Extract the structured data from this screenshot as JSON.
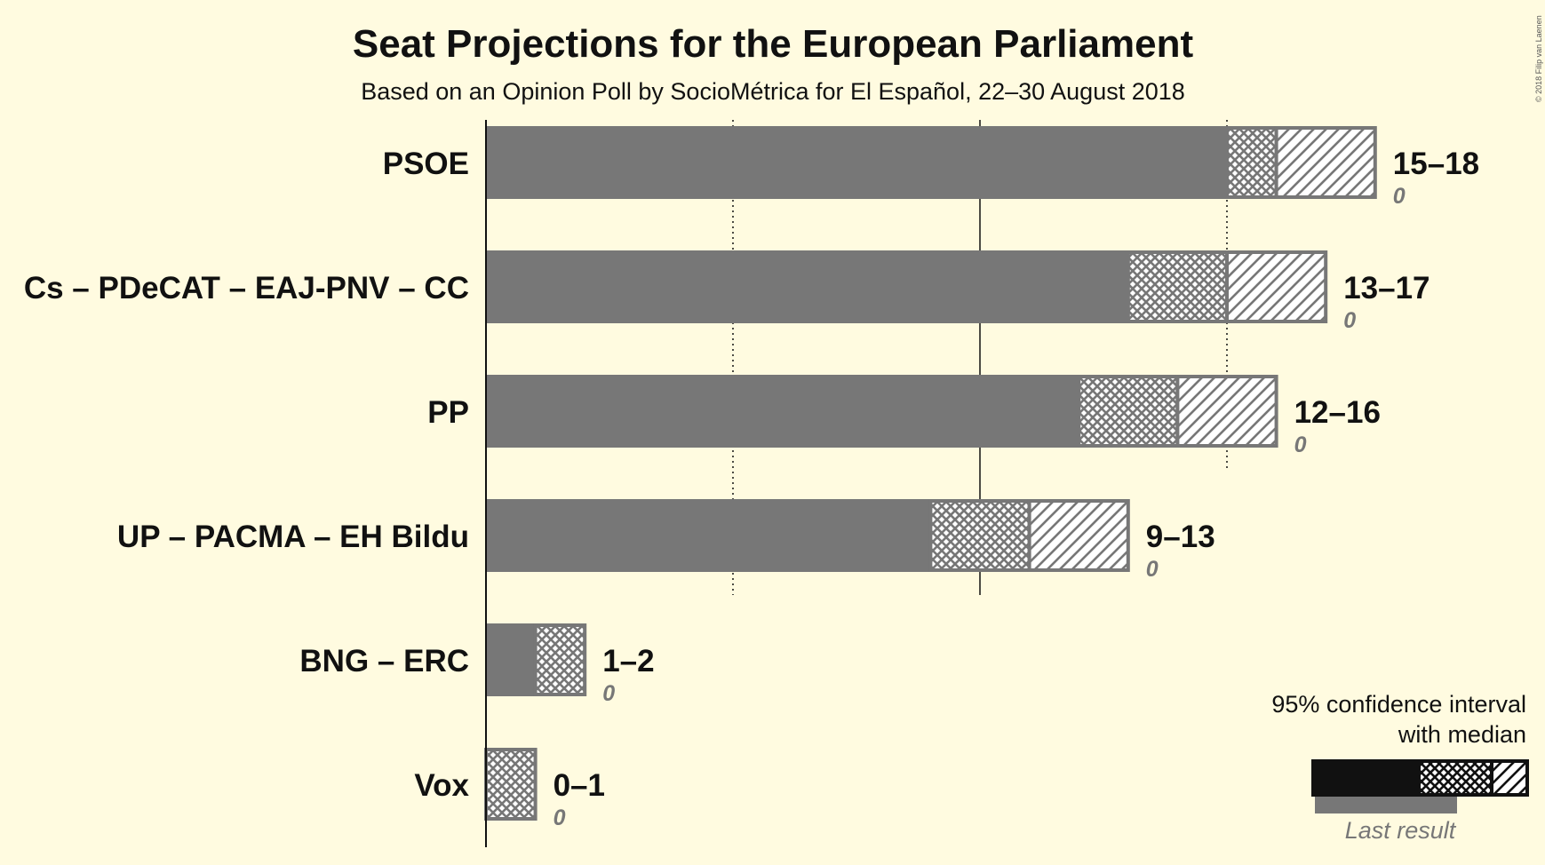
{
  "chart_data": {
    "type": "bar",
    "orientation": "horizontal",
    "title": "Seat Projections for the European Parliament",
    "subtitle": "Based on an Opinion Poll by SocioMétrica for El Español, 22–30 August 2018",
    "copyright": "© 2018 Filip van Laenen",
    "xlim": [
      0,
      18
    ],
    "gridlines": [
      {
        "value": 5,
        "style": "dotted"
      },
      {
        "value": 10,
        "style": "solid"
      },
      {
        "value": 15,
        "style": "dotted"
      }
    ],
    "parties": [
      {
        "name": "PSOE",
        "low": 15,
        "median": 16,
        "high": 18,
        "range_label": "15–18",
        "last_result": "0"
      },
      {
        "name": "Cs – PDeCAT – EAJ-PNV – CC",
        "low": 13,
        "median": 15,
        "high": 17,
        "range_label": "13–17",
        "last_result": "0"
      },
      {
        "name": "PP",
        "low": 12,
        "median": 14,
        "high": 16,
        "range_label": "12–16",
        "last_result": "0"
      },
      {
        "name": "UP – PACMA – EH Bildu",
        "low": 9,
        "median": 11,
        "high": 13,
        "range_label": "9–13",
        "last_result": "0"
      },
      {
        "name": "BNG – ERC",
        "low": 1,
        "median": 2,
        "high": 2,
        "range_label": "1–2",
        "last_result": "0"
      },
      {
        "name": "Vox",
        "low": 0,
        "median": 1,
        "high": 1,
        "range_label": "0–1",
        "last_result": "0"
      }
    ],
    "legend": {
      "line1": "95% confidence interval",
      "line2": "with median",
      "last_result": "Last result"
    },
    "colors": {
      "background": "#fffbe0",
      "bar": "#777777",
      "legend_bar": "#111111",
      "text": "#111111",
      "muted": "#777777"
    }
  }
}
